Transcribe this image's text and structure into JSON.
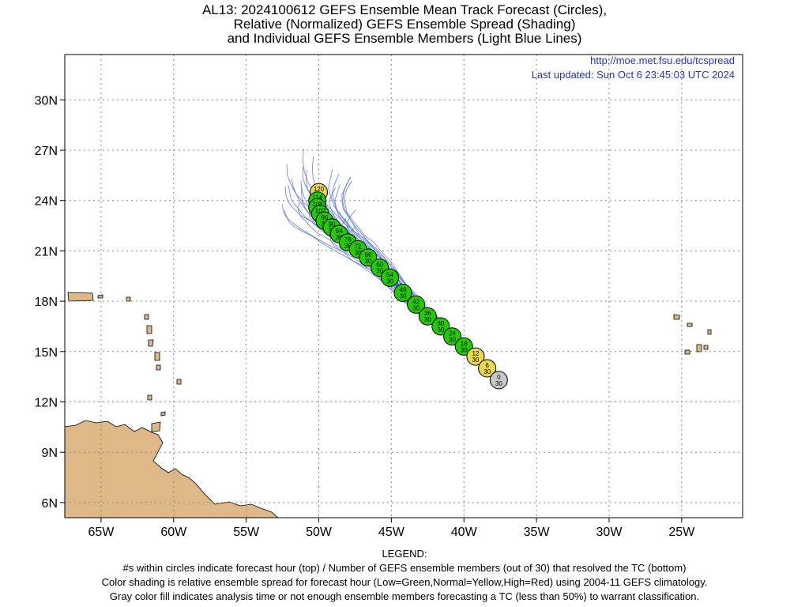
{
  "title": {
    "line1": "AL13: 2024100612 GEFS Ensemble Mean Track Forecast (Circles),",
    "line2": "Relative (Normalized) GEFS Ensemble Spread (Shading)",
    "line3": "and Individual GEFS Ensemble Members (Light Blue Lines)"
  },
  "source": {
    "url": "http://moe.met.fsu.edu/tcspread",
    "updated": "Last updated: Sun Oct 6 23:45:03 UTC 2024"
  },
  "axes": {
    "lon_range": [
      -67.5,
      -20.8
    ],
    "lat_range": [
      5.1,
      32.7
    ],
    "lon_ticks": [
      {
        "value": -65,
        "label": "65W"
      },
      {
        "value": -60,
        "label": "60W"
      },
      {
        "value": -55,
        "label": "55W"
      },
      {
        "value": -50,
        "label": "50W"
      },
      {
        "value": -45,
        "label": "45W"
      },
      {
        "value": -40,
        "label": "40W"
      },
      {
        "value": -35,
        "label": "35W"
      },
      {
        "value": -30,
        "label": "30W"
      },
      {
        "value": -25,
        "label": "25W"
      }
    ],
    "lat_ticks": [
      {
        "value": 6,
        "label": "6N"
      },
      {
        "value": 9,
        "label": "9N"
      },
      {
        "value": 12,
        "label": "12N"
      },
      {
        "value": 15,
        "label": "15N"
      },
      {
        "value": 18,
        "label": "18N"
      },
      {
        "value": 21,
        "label": "21N"
      },
      {
        "value": 24,
        "label": "24N"
      },
      {
        "value": 27,
        "label": "27N"
      },
      {
        "value": 30,
        "label": "30N"
      }
    ],
    "grid": true
  },
  "colors": {
    "low_spread": "#22cc00",
    "normal_spread": "#e8d84a",
    "analysis_gray": "#c8c8c8",
    "member_lines": "#4466ee",
    "land": "#deb887",
    "link_text": "#2233cc"
  },
  "mean_track": [
    {
      "hour": "0",
      "members": "30",
      "lon": -37.6,
      "lat": 13.3,
      "spread": "gray"
    },
    {
      "hour": "6",
      "members": "30",
      "lon": -38.4,
      "lat": 14.0,
      "spread": "normal"
    },
    {
      "hour": "12",
      "members": "30",
      "lon": -39.2,
      "lat": 14.7,
      "spread": "normal"
    },
    {
      "hour": "18",
      "members": "30",
      "lon": -40.0,
      "lat": 15.3,
      "spread": "low"
    },
    {
      "hour": "24",
      "members": "30",
      "lon": -40.8,
      "lat": 15.9,
      "spread": "low"
    },
    {
      "hour": "30",
      "members": "30",
      "lon": -41.6,
      "lat": 16.5,
      "spread": "low"
    },
    {
      "hour": "36",
      "members": "30",
      "lon": -42.5,
      "lat": 17.1,
      "spread": "low"
    },
    {
      "hour": "42",
      "members": "30",
      "lon": -43.3,
      "lat": 17.8,
      "spread": "low"
    },
    {
      "hour": "48",
      "members": "30",
      "lon": -44.2,
      "lat": 18.5,
      "spread": "low"
    },
    {
      "hour": "54",
      "members": "30",
      "lon": -45.1,
      "lat": 19.4,
      "spread": "low"
    },
    {
      "hour": "60",
      "members": "30",
      "lon": -45.8,
      "lat": 20.0,
      "spread": "low"
    },
    {
      "hour": "66",
      "members": "30",
      "lon": -46.6,
      "lat": 20.6,
      "spread": "low"
    },
    {
      "hour": "72",
      "members": "30",
      "lon": -47.3,
      "lat": 21.1,
      "spread": "low"
    },
    {
      "hour": "78",
      "members": "30",
      "lon": -48.0,
      "lat": 21.5,
      "spread": "low"
    },
    {
      "hour": "84",
      "members": "30",
      "lon": -48.6,
      "lat": 22.0,
      "spread": "low"
    },
    {
      "hour": "90",
      "members": "30",
      "lon": -49.1,
      "lat": 22.4,
      "spread": "low"
    },
    {
      "hour": "96",
      "members": "30",
      "lon": -49.6,
      "lat": 22.8,
      "spread": "low"
    },
    {
      "hour": "102",
      "members": "30",
      "lon": -49.9,
      "lat": 23.2,
      "spread": "low"
    },
    {
      "hour": "108",
      "members": "30",
      "lon": -50.1,
      "lat": 23.6,
      "spread": "low"
    },
    {
      "hour": "114",
      "members": "30",
      "lon": -50.1,
      "lat": 24.0,
      "spread": "low"
    },
    {
      "hour": "120",
      "members": "30",
      "lon": -50.0,
      "lat": 24.5,
      "spread": "normal"
    }
  ],
  "legend": {
    "heading": "LEGEND:",
    "line1": "#s within circles indicate forecast hour (top) / Number of GEFS ensemble members (out of 30) that resolved the TC (bottom)",
    "line2": "Color shading is relative ensemble spread for forecast hour (Low=Green,Normal=Yellow,High=Red) using 2004-11 GEFS climatology.",
    "line3": "Gray color fill indicates analysis time or not enough ensemble members forecasting a TC (less than 50%) to warrant classification."
  }
}
